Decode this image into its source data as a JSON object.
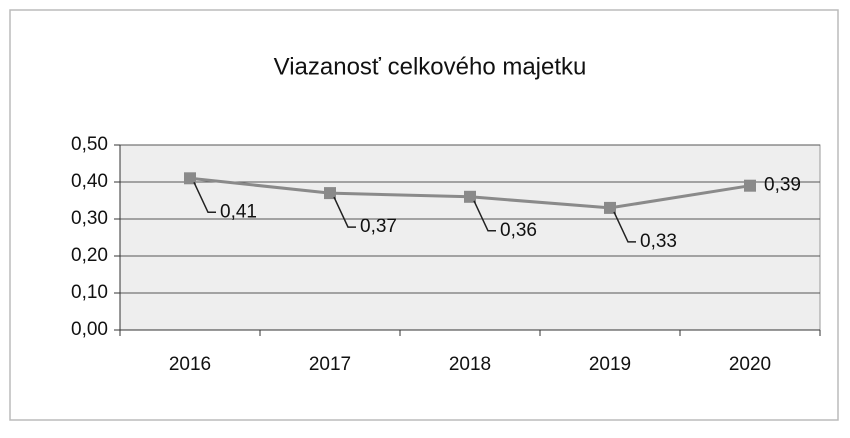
{
  "chart_data": {
    "type": "line",
    "title": "Viazanosť celkového majetku",
    "categories": [
      "2016",
      "2017",
      "2018",
      "2019",
      "2020"
    ],
    "series": [
      {
        "name": "Viazanosť celkového majetku",
        "color": "#8a8a8a",
        "values": [
          0.41,
          0.37,
          0.36,
          0.33,
          0.39
        ],
        "value_labels": [
          "0,41",
          "0,37",
          "0,36",
          "0,33",
          "0,39"
        ]
      }
    ],
    "ylim": [
      0,
      0.5
    ],
    "yticks": [
      {
        "value": 0,
        "label": "0,00"
      },
      {
        "value": 0.1,
        "label": "0,10"
      },
      {
        "value": 0.2,
        "label": "0,20"
      },
      {
        "value": 0.3,
        "label": "0,30"
      },
      {
        "value": 0.4,
        "label": "0,40"
      },
      {
        "value": 0.5,
        "label": "0,50"
      }
    ],
    "grid": true
  }
}
